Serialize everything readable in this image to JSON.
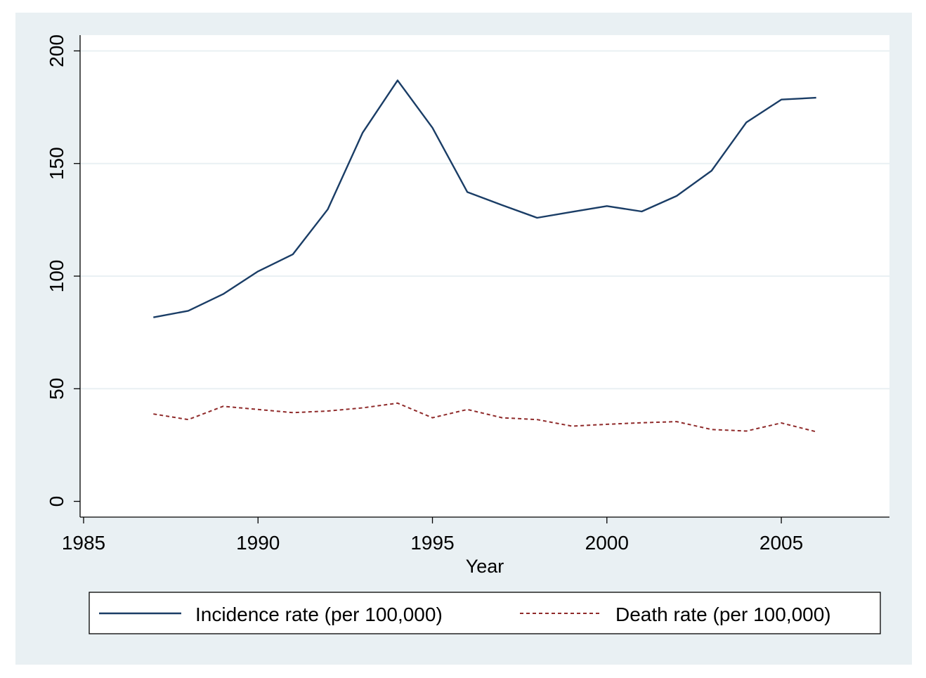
{
  "chart_data": {
    "type": "line",
    "title": "",
    "xlabel": "Year",
    "ylabel": "",
    "xlim": [
      1984.9,
      2008.1
    ],
    "ylim": [
      -7,
      207
    ],
    "xticks": [
      1985,
      1990,
      1995,
      2000,
      2005
    ],
    "yticks": [
      0,
      50,
      100,
      150,
      200
    ],
    "grid": "horizontal",
    "legend_position": "bottom",
    "x": [
      1987,
      1988,
      1989,
      1990,
      1991,
      1992,
      1993,
      1994,
      1995,
      1996,
      1997,
      1998,
      1999,
      2000,
      2001,
      2002,
      2003,
      2004,
      2005,
      2006
    ],
    "series": [
      {
        "name": "Incidence rate (per 100,000)",
        "color": "#1a3d66",
        "style": "solid",
        "values": [
          81.7,
          84.6,
          92.0,
          102.1,
          109.7,
          129.7,
          163.7,
          186.9,
          165.9,
          137.3,
          131.5,
          125.9,
          128.5,
          131.1,
          128.7,
          135.6,
          146.8,
          168.3,
          178.4,
          179.2
        ]
      },
      {
        "name": "Death rate (per 100,000)",
        "color": "#8f2a2a",
        "style": "dashed",
        "values": [
          38.8,
          36.3,
          42.2,
          40.8,
          39.4,
          40.1,
          41.5,
          43.6,
          37.1,
          40.8,
          37.1,
          36.3,
          33.4,
          34.2,
          34.9,
          35.4,
          31.9,
          31.2,
          34.8,
          30.9
        ]
      }
    ]
  }
}
